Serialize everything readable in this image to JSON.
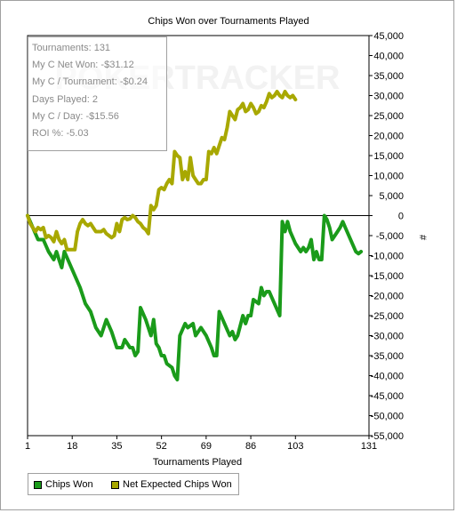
{
  "chart_data": {
    "type": "line",
    "title": "Chips Won over Tournaments Played",
    "xlabel": "Tournaments Played",
    "ylabel": "#",
    "xlim": [
      1,
      131
    ],
    "ylim": [
      -55000,
      45000
    ],
    "x_ticks": [
      "1",
      "18",
      "35",
      "52",
      "69",
      "86",
      "103",
      "131"
    ],
    "y_ticks": [
      "45,000",
      "40,000",
      "35,000",
      "30,000",
      "25,000",
      "20,000",
      "15,000",
      "10,000",
      "5,000",
      "0",
      "-5,000",
      "-10,000",
      "-15,000",
      "-20,000",
      "-25,000",
      "-30,000",
      "-35,000",
      "-40,000",
      "-45,000",
      "-50,000",
      "-55,000"
    ],
    "watermark": "POKERTRACKER",
    "legend_position": "bottom-left",
    "series": [
      {
        "name": "Chips Won",
        "color": "#1a9b1a",
        "points": [
          [
            1,
            0
          ],
          [
            3,
            -3000
          ],
          [
            5,
            -6000
          ],
          [
            7,
            -6000
          ],
          [
            9,
            -9000
          ],
          [
            11,
            -11000
          ],
          [
            12,
            -9000
          ],
          [
            13,
            -11000
          ],
          [
            14,
            -13000
          ],
          [
            15,
            -9000
          ],
          [
            17,
            -12000
          ],
          [
            19,
            -15000
          ],
          [
            21,
            -18000
          ],
          [
            23,
            -22000
          ],
          [
            25,
            -24000
          ],
          [
            27,
            -28000
          ],
          [
            29,
            -30000
          ],
          [
            31,
            -26000
          ],
          [
            33,
            -29000
          ],
          [
            35,
            -33000
          ],
          [
            37,
            -33000
          ],
          [
            38,
            -31000
          ],
          [
            40,
            -33000
          ],
          [
            41,
            -33000
          ],
          [
            42,
            -35000
          ],
          [
            43,
            -34000
          ],
          [
            44,
            -23000
          ],
          [
            46,
            -26000
          ],
          [
            48,
            -30000
          ],
          [
            49,
            -26000
          ],
          [
            50,
            -32000
          ],
          [
            51,
            -33000
          ],
          [
            52,
            -35000
          ],
          [
            53,
            -35000
          ],
          [
            54,
            -37000
          ],
          [
            56,
            -38000
          ],
          [
            57,
            -40000
          ],
          [
            58,
            -41000
          ],
          [
            59,
            -30000
          ],
          [
            61,
            -27000
          ],
          [
            62,
            -28000
          ],
          [
            64,
            -27000
          ],
          [
            65,
            -30000
          ],
          [
            67,
            -28000
          ],
          [
            69,
            -30000
          ],
          [
            71,
            -33000
          ],
          [
            72,
            -35000
          ],
          [
            73,
            -35000
          ],
          [
            74,
            -24000
          ],
          [
            76,
            -27000
          ],
          [
            78,
            -30000
          ],
          [
            79,
            -29000
          ],
          [
            80,
            -31000
          ],
          [
            81,
            -30000
          ],
          [
            83,
            -25000
          ],
          [
            84,
            -27000
          ],
          [
            85,
            -25000
          ],
          [
            86,
            -25000
          ],
          [
            87,
            -21000
          ],
          [
            89,
            -22000
          ],
          [
            90,
            -18000
          ],
          [
            91,
            -20000
          ],
          [
            92,
            -19000
          ],
          [
            93,
            -19000
          ],
          [
            95,
            -22000
          ],
          [
            97,
            -25000
          ],
          [
            98,
            -1500
          ],
          [
            99,
            -4000
          ],
          [
            100,
            -1500
          ],
          [
            101,
            -4000
          ],
          [
            103,
            -7000
          ],
          [
            105,
            -9000
          ],
          [
            106,
            -8000
          ],
          [
            107,
            -9000
          ],
          [
            108,
            -8000
          ],
          [
            109,
            -6000
          ],
          [
            110,
            -11000
          ],
          [
            111,
            -9000
          ],
          [
            112,
            -11000
          ],
          [
            113,
            -11000
          ],
          [
            114,
            0
          ],
          [
            115,
            -1000
          ],
          [
            116,
            -3000
          ],
          [
            117,
            -6000
          ],
          [
            118,
            -5000
          ],
          [
            119,
            -4000
          ],
          [
            120,
            -3000
          ],
          [
            121,
            -1500
          ],
          [
            122,
            -3000
          ],
          [
            124,
            -6000
          ],
          [
            126,
            -9000
          ],
          [
            127,
            -9500
          ],
          [
            128,
            -9000
          ]
        ]
      },
      {
        "name": "Net Expected Chips Won",
        "color": "#a8a800",
        "points": [
          [
            1,
            0
          ],
          [
            2,
            -2000
          ],
          [
            3,
            -3000
          ],
          [
            4,
            -4000
          ],
          [
            5,
            -3000
          ],
          [
            6,
            -3500
          ],
          [
            7,
            -3000
          ],
          [
            8,
            -5500
          ],
          [
            9,
            -5000
          ],
          [
            10,
            -5500
          ],
          [
            11,
            -6500
          ],
          [
            12,
            -4000
          ],
          [
            13,
            -6000
          ],
          [
            14,
            -7000
          ],
          [
            15,
            -6000
          ],
          [
            16,
            -8500
          ],
          [
            17,
            -8500
          ],
          [
            18,
            -8500
          ],
          [
            19,
            -8500
          ],
          [
            20,
            -4000
          ],
          [
            21,
            -2000
          ],
          [
            22,
            -1000
          ],
          [
            23,
            -2000
          ],
          [
            24,
            -2500
          ],
          [
            25,
            -2000
          ],
          [
            26,
            -3000
          ],
          [
            27,
            -4000
          ],
          [
            28,
            -4000
          ],
          [
            29,
            -4000
          ],
          [
            30,
            -3500
          ],
          [
            31,
            -4500
          ],
          [
            32,
            -5000
          ],
          [
            33,
            -5500
          ],
          [
            34,
            -5000
          ],
          [
            35,
            -2000
          ],
          [
            36,
            -4000
          ],
          [
            37,
            -1000
          ],
          [
            38,
            -500
          ],
          [
            39,
            -1000
          ],
          [
            40,
            -800
          ],
          [
            41,
            0
          ],
          [
            42,
            -500
          ],
          [
            43,
            -1500
          ],
          [
            44,
            -2000
          ],
          [
            45,
            -3000
          ],
          [
            46,
            -3500
          ],
          [
            47,
            -4500
          ],
          [
            48,
            2500
          ],
          [
            49,
            1500
          ],
          [
            50,
            2500
          ],
          [
            51,
            6500
          ],
          [
            52,
            7000
          ],
          [
            53,
            6500
          ],
          [
            54,
            8000
          ],
          [
            55,
            9000
          ],
          [
            56,
            8000
          ],
          [
            57,
            16000
          ],
          [
            58,
            15000
          ],
          [
            59,
            14500
          ],
          [
            60,
            9000
          ],
          [
            61,
            11000
          ],
          [
            62,
            9000
          ],
          [
            63,
            14500
          ],
          [
            64,
            10000
          ],
          [
            65,
            9000
          ],
          [
            66,
            8000
          ],
          [
            67,
            8000
          ],
          [
            68,
            9000
          ],
          [
            69,
            9000
          ],
          [
            70,
            16000
          ],
          [
            71,
            15500
          ],
          [
            72,
            17000
          ],
          [
            73,
            15500
          ],
          [
            74,
            17500
          ],
          [
            75,
            19500
          ],
          [
            76,
            19000
          ],
          [
            77,
            22000
          ],
          [
            78,
            26000
          ],
          [
            79,
            25000
          ],
          [
            80,
            24000
          ],
          [
            81,
            26500
          ],
          [
            82,
            27000
          ],
          [
            83,
            28000
          ],
          [
            84,
            26000
          ],
          [
            85,
            26500
          ],
          [
            86,
            28000
          ],
          [
            87,
            27000
          ],
          [
            88,
            25500
          ],
          [
            89,
            26000
          ],
          [
            90,
            27500
          ],
          [
            91,
            27000
          ],
          [
            92,
            28500
          ],
          [
            93,
            30500
          ],
          [
            94,
            29500
          ],
          [
            95,
            30000
          ],
          [
            96,
            31000
          ],
          [
            97,
            30000
          ],
          [
            98,
            29500
          ],
          [
            99,
            31000
          ],
          [
            100,
            30000
          ],
          [
            101,
            29500
          ],
          [
            102,
            30000
          ],
          [
            103,
            29000
          ]
        ]
      }
    ]
  },
  "stats": [
    "Tournaments: 131",
    "My C Net Won: -$31.12",
    "My C / Tournament: -$0.24",
    "Days Played: 2",
    "My C / Day: -$15.56",
    "ROI %: -5.03"
  ],
  "legend": {
    "items": [
      "Chips Won",
      "Net Expected Chips Won"
    ]
  }
}
